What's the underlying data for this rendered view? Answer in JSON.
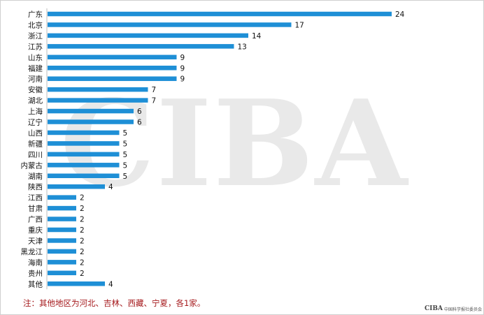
{
  "watermark": {
    "text": "CIBA"
  },
  "chart_data": {
    "type": "bar",
    "orientation": "horizontal",
    "categories": [
      "广东",
      "北京",
      "浙江",
      "江苏",
      "山东",
      "福建",
      "河南",
      "安徽",
      "湖北",
      "上海",
      "辽宁",
      "山西",
      "新疆",
      "四川",
      "内蒙古",
      "湖南",
      "陕西",
      "江西",
      "甘肃",
      "广西",
      "重庆",
      "天津",
      "黑龙江",
      "海南",
      "贵州",
      "其他"
    ],
    "values": [
      24,
      17,
      14,
      13,
      9,
      9,
      9,
      7,
      7,
      6,
      6,
      5,
      5,
      5,
      5,
      5,
      4,
      2,
      2,
      2,
      2,
      2,
      2,
      2,
      2,
      4
    ],
    "title": "",
    "xlabel": "",
    "ylabel": "",
    "xlim": [
      0,
      24
    ],
    "grid": false,
    "bar_color": "#1e8fd6"
  },
  "note": "注：其他地区为河北、吉林、西藏、宁夏，各1家。",
  "logo": {
    "mark": "CIBA",
    "text": "中国科学报社委员会"
  },
  "colors": {
    "bar": "#1e8fd6",
    "note": "#a5191c"
  }
}
